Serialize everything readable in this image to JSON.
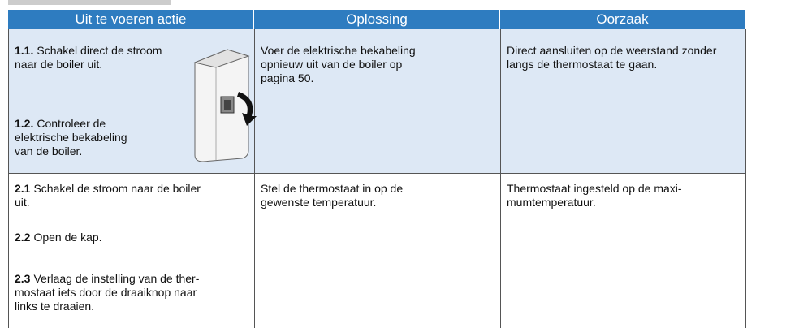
{
  "table": {
    "headers": [
      "Uit te voeren actie",
      "Oplossing",
      "Oorzaak"
    ],
    "rows": [
      [
        {
          "steps": [
            {
              "number": "1.1.",
              "text": "Schakel direct de stroom\nnaar de boiler uit."
            },
            {
              "number": "1.2.",
              "text": "Controleer de\nelektrische bekabeling\nvan de boiler."
            }
          ]
        },
        "Voer de elektrische bekabeling\nopnieuw uit van de boiler op\npagina 50.",
        "Direct aansluiten op de weerstand zonder\nlangs de thermostaat te gaan."
      ],
      [
        {
          "steps": [
            {
              "number": "2.1",
              "text": "Schakel de stroom naar de boiler\nuit."
            },
            {
              "number": "2.2",
              "text": "Open de kap."
            },
            {
              "number": "2.3",
              "text": "Verlaag de instelling van de ther-\nmostaat iets door de draaiknop naar\nlinks te draaien."
            }
          ]
        },
        "Stel de thermostaat in op de\ngewenste temperatuur.",
        "Thermostaat ingesteld op de maxi-\nmumtemperatuur."
      ]
    ]
  }
}
